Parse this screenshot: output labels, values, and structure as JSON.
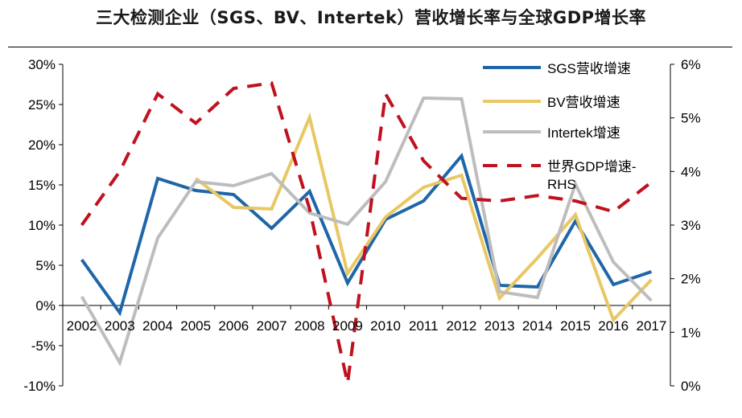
{
  "chart_data": {
    "type": "line",
    "title": "三大检测企业（SGS、BV、Intertek）营收增长率与全球GDP增长率",
    "categories": [
      "2002",
      "2003",
      "2004",
      "2005",
      "2006",
      "2007",
      "2008",
      "2009",
      "2010",
      "2011",
      "2012",
      "2013",
      "2014",
      "2015",
      "2016",
      "2017"
    ],
    "y_left": {
      "ylim": [
        -10,
        30
      ],
      "ticks": [
        "30%",
        "25%",
        "20%",
        "15%",
        "10%",
        "5%",
        "0%",
        "-5%",
        "-10%"
      ],
      "tick_values": [
        30,
        25,
        20,
        15,
        10,
        5,
        0,
        -5,
        -10
      ]
    },
    "y_right": {
      "ylim": [
        0,
        6
      ],
      "ticks": [
        "6%",
        "5%",
        "4%",
        "3%",
        "2%",
        "1%",
        "0%"
      ],
      "tick_values": [
        6,
        5,
        4,
        3,
        2,
        1,
        0
      ]
    },
    "legend_position": "top-right",
    "grid": false,
    "series": [
      {
        "name": "SGS营收增速",
        "axis": "left",
        "color": "#1f66a8",
        "dash": false,
        "values": [
          5.7,
          -0.9,
          15.8,
          14.3,
          13.8,
          9.6,
          14.2,
          2.8,
          10.7,
          13.0,
          18.6,
          2.5,
          2.3,
          10.5,
          2.6,
          4.2
        ]
      },
      {
        "name": "BV营收增速",
        "axis": "left",
        "color": "#e8c764",
        "dash": false,
        "values": [
          null,
          null,
          null,
          15.8,
          12.2,
          12.0,
          23.4,
          4.0,
          11.0,
          14.7,
          16.2,
          0.9,
          5.9,
          11.3,
          -1.8,
          3.2
        ]
      },
      {
        "name": "Intertek增速",
        "axis": "left",
        "color": "#bdbdbd",
        "dash": false,
        "values": [
          1.1,
          -7.1,
          8.4,
          15.4,
          14.9,
          16.4,
          11.5,
          10.1,
          15.4,
          25.8,
          25.7,
          1.7,
          1.0,
          15.1,
          5.4,
          0.6
        ]
      },
      {
        "name": "世界GDP增速-RHS",
        "axis": "right",
        "color": "#c0111f",
        "dash": true,
        "values": [
          3.0,
          4.0,
          5.45,
          4.9,
          5.55,
          5.65,
          3.3,
          0.05,
          5.45,
          4.2,
          3.5,
          3.45,
          3.55,
          3.45,
          3.25,
          3.8
        ]
      }
    ]
  }
}
